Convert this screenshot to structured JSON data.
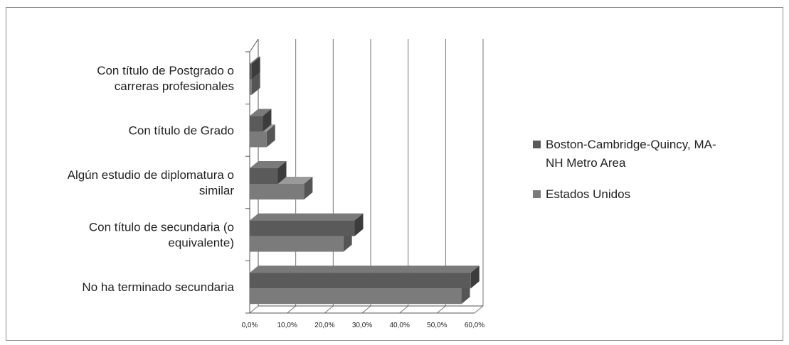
{
  "colors": {
    "series1_front": "#5a5a5a",
    "series1_top": "#7a7a7a",
    "series1_side": "#3c3c3c",
    "series2_front": "#7b7b7b",
    "series2_top": "#9a9a9a",
    "series2_side": "#555555",
    "gridline": "#777777",
    "axis": "#555555"
  },
  "chart_data": {
    "type": "bar",
    "orientation": "horizontal",
    "style": "3d-clustered",
    "categories": [
      [
        "Con título de Postgrado o",
        "carreras profesionales"
      ],
      [
        "Con título de Grado"
      ],
      [
        "Algún estudio de diplomatura o",
        "similar"
      ],
      [
        "Con título de secundaria (o",
        "equivalente)"
      ],
      [
        "No ha terminado secundaria"
      ]
    ],
    "series": [
      {
        "name": [
          "Boston-Cambridge-Quincy, MA-",
          "NH Metro Area"
        ],
        "values": [
          0.5,
          3.5,
          7.5,
          28.0,
          59.0
        ]
      },
      {
        "name": [
          "Estados Unidos"
        ],
        "values": [
          0.5,
          4.5,
          14.5,
          25.0,
          56.5
        ]
      }
    ],
    "xlim": [
      0,
      60
    ],
    "x_ticks": [
      "0,0%",
      "10,0%",
      "20,0%",
      "30,0%",
      "40,0%",
      "50,0%",
      "60,0%"
    ],
    "grid": true,
    "legend_position": "right"
  }
}
